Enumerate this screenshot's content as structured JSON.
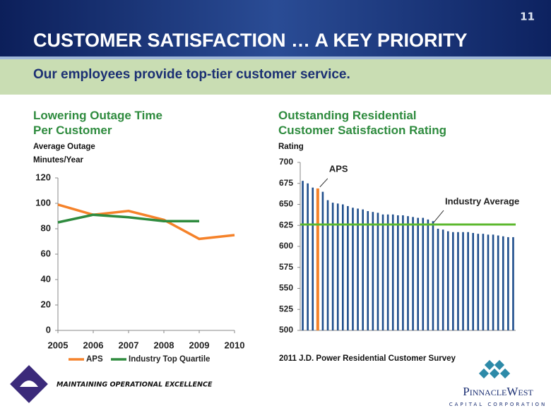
{
  "slide": {
    "page_number": "11",
    "title": "CUSTOMER SATISFACTION … A KEY PRIORITY",
    "subtitle": "Our employees provide top-tier customer service.",
    "footer": "MAINTAINING OPERATIONAL EXCELLENCE",
    "logo_name": "PinnacleWest",
    "logo_tagline": "CAPITAL CORPORATION"
  },
  "chart_data": [
    {
      "type": "line",
      "title": "Lowering Outage Time Per Customer",
      "y_label": "Average Outage Minutes/Year",
      "categories": [
        "2005",
        "2006",
        "2007",
        "2008",
        "2009",
        "2010"
      ],
      "series": [
        {
          "name": "APS",
          "color": "#f5822a",
          "values": [
            99,
            91,
            94,
            87,
            72,
            75
          ]
        },
        {
          "name": "Industry Top Quartile",
          "color": "#2e8b3e",
          "values": [
            85,
            91,
            89,
            86,
            86,
            null
          ]
        }
      ],
      "ylim": [
        0,
        120
      ],
      "yticks": [
        0,
        20,
        40,
        60,
        80,
        100,
        120
      ],
      "legend": "bottom"
    },
    {
      "type": "bar",
      "title": "Outstanding Residential Customer Satisfaction Rating",
      "y_label": "Rating",
      "categories": [
        null,
        null,
        null,
        null,
        null,
        null,
        null,
        null,
        null,
        null,
        null,
        null,
        null,
        null,
        null,
        null,
        null,
        null,
        null,
        null,
        null,
        null,
        null,
        null,
        null,
        null,
        null,
        null,
        null,
        null,
        null,
        null,
        null,
        null,
        null,
        null,
        null,
        null,
        null,
        null,
        null,
        null,
        null
      ],
      "values": [
        678,
        675,
        670,
        669,
        665,
        655,
        652,
        651,
        650,
        648,
        646,
        645,
        644,
        642,
        641,
        640,
        638,
        638,
        638,
        637,
        637,
        636,
        635,
        634,
        634,
        632,
        630,
        621,
        620,
        618,
        617,
        617,
        617,
        617,
        616,
        615,
        615,
        614,
        614,
        613,
        612,
        611,
        611
      ],
      "color": "#1f4e8c",
      "highlight": {
        "index": 3,
        "color": "#f5822a",
        "label": "APS"
      },
      "reference_line": {
        "label": "Industry Average",
        "value": 626,
        "color": "#5cb82e"
      },
      "ylim": [
        500,
        700
      ],
      "yticks": [
        500,
        525,
        550,
        575,
        600,
        625,
        650,
        675,
        700
      ],
      "footnote": "2011 J.D. Power Residential Customer Survey"
    }
  ]
}
